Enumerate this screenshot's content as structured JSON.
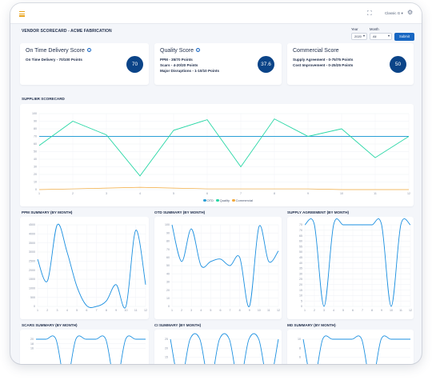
{
  "header": {
    "expand_icon": "expand-icon",
    "user_label": "Classic G",
    "settings_icon": "gear-icon"
  },
  "page": {
    "title": "VENDOR SCORECARD - ACME FABRICATION"
  },
  "filters": {
    "year_label": "Year",
    "year_value": "2020",
    "month_label": "Month",
    "month_value": "All",
    "submit_label": "Submit"
  },
  "scores": [
    {
      "title": "On Time Delivery Score",
      "lines": [
        "On Time Delivery - 70/100 Points"
      ],
      "value": "70"
    },
    {
      "title": "Quality Score",
      "lines": [
        "PPM - 35/70 Points",
        "Scars - 4-20/20 Points",
        "Major Disruptions - 1-10/10 Points"
      ],
      "value": "37.6"
    },
    {
      "title": "Commercial Score",
      "lines": [
        "Supply Agreement - 0-75/75 Points",
        "Cost Improvement - 0-25/25 Points"
      ],
      "value": "50"
    }
  ],
  "colors": {
    "otd": "#2b9fd6",
    "quality": "#25d6a4",
    "commercial": "#f2a93b",
    "small_series": "#1a8fe0",
    "circle": "#0b4488",
    "submit": "#1766c2"
  },
  "supplier_chart": {
    "title": "SUPPLIER SCORECARD",
    "legend": [
      "OTD",
      "Quality",
      "Commercial"
    ],
    "chart_data": {
      "type": "line",
      "categories": [
        "1",
        "2",
        "3",
        "4",
        "5",
        "6",
        "7",
        "8",
        "9",
        "10",
        "11",
        "12"
      ],
      "ylim": [
        0,
        100
      ],
      "yticks": [
        "0",
        "10",
        "20",
        "30",
        "40",
        "50",
        "60",
        "70",
        "80",
        "90",
        "100"
      ],
      "grid": true,
      "legend_position": "bottom",
      "series": [
        {
          "name": "OTD",
          "values": [
            70,
            70,
            70,
            70,
            70,
            70,
            70,
            70,
            70,
            70,
            70,
            70
          ]
        },
        {
          "name": "Quality",
          "values": [
            58,
            90,
            72,
            18,
            78,
            92,
            30,
            93,
            70,
            80,
            42,
            70
          ]
        },
        {
          "name": "Commercial",
          "values": [
            0,
            1,
            2,
            3,
            2,
            1,
            1,
            1,
            1,
            0,
            0,
            0
          ]
        }
      ]
    }
  },
  "small_charts": [
    {
      "title": "PPM SUMMARY (BY MONTH)",
      "chart_data": {
        "type": "line",
        "x": [
          1,
          2,
          3,
          4,
          5,
          6,
          7,
          8,
          9,
          10,
          11,
          12
        ],
        "yticks": [
          "0",
          "500",
          "1000",
          "1500",
          "2000",
          "2500",
          "3000",
          "3500",
          "4000",
          "4500"
        ],
        "ylim": [
          0,
          4500
        ],
        "values": [
          2600,
          1400,
          4500,
          3000,
          1100,
          40,
          0,
          300,
          1200,
          0,
          4200,
          1200
        ]
      }
    },
    {
      "title": "OTD SUMMARY (BY MONTH)",
      "chart_data": {
        "type": "line",
        "x": [
          1,
          2,
          3,
          4,
          5,
          6,
          7,
          8,
          9,
          10,
          11,
          12
        ],
        "yticks": [
          "0",
          "10",
          "20",
          "30",
          "40",
          "50",
          "60",
          "70",
          "80",
          "90",
          "100"
        ],
        "ylim": [
          0,
          100
        ],
        "values": [
          100,
          55,
          95,
          50,
          55,
          58,
          50,
          60,
          0,
          98,
          55,
          68
        ]
      }
    },
    {
      "title": "SUPPLY AGREEMENT (BY MONTH)",
      "chart_data": {
        "type": "line",
        "x": [
          1,
          2,
          3,
          4,
          5,
          6,
          7,
          8,
          9,
          10,
          11,
          12
        ],
        "yticks": [
          "0",
          "5",
          "10",
          "15",
          "20",
          "25",
          "30",
          "35",
          "40",
          "45",
          "50",
          "55",
          "60",
          "65",
          "70",
          "75"
        ],
        "ylim": [
          0,
          75
        ],
        "values": [
          75,
          75,
          0,
          75,
          75,
          75,
          75,
          75,
          75,
          0,
          75,
          75
        ]
      }
    },
    {
      "title": "SCARS SUMMARY (BY MONTH)",
      "chart_data": {
        "type": "line",
        "x": [
          1,
          2,
          3,
          4,
          5,
          6,
          7,
          8,
          9,
          10,
          11,
          12
        ],
        "yticks": [
          "20",
          "18",
          "16"
        ],
        "ylim": [
          0,
          20
        ],
        "values": [
          20,
          20,
          20,
          0,
          20,
          20,
          20,
          20,
          0,
          20,
          20,
          20
        ]
      }
    },
    {
      "title": "CI SUMMARY (BY MONTH)",
      "chart_data": {
        "type": "line",
        "x": [
          1,
          2,
          3,
          4,
          5,
          6,
          7,
          8,
          9,
          10,
          11,
          12
        ],
        "yticks": [
          "25",
          "20",
          "15"
        ],
        "ylim": [
          0,
          25
        ],
        "values": [
          25,
          0,
          25,
          25,
          0,
          25,
          25,
          0,
          25,
          25,
          0,
          25
        ]
      }
    },
    {
      "title": "MD SUMMARY (BY MONTH)",
      "chart_data": {
        "type": "line",
        "x": [
          1,
          2,
          3,
          4,
          5,
          6,
          7,
          8,
          9,
          10,
          11,
          12
        ],
        "yticks": [
          "10",
          "8",
          "6"
        ],
        "ylim": [
          0,
          10
        ],
        "values": [
          10,
          0,
          10,
          10,
          10,
          10,
          10,
          0,
          10,
          10,
          10,
          10
        ]
      }
    }
  ]
}
